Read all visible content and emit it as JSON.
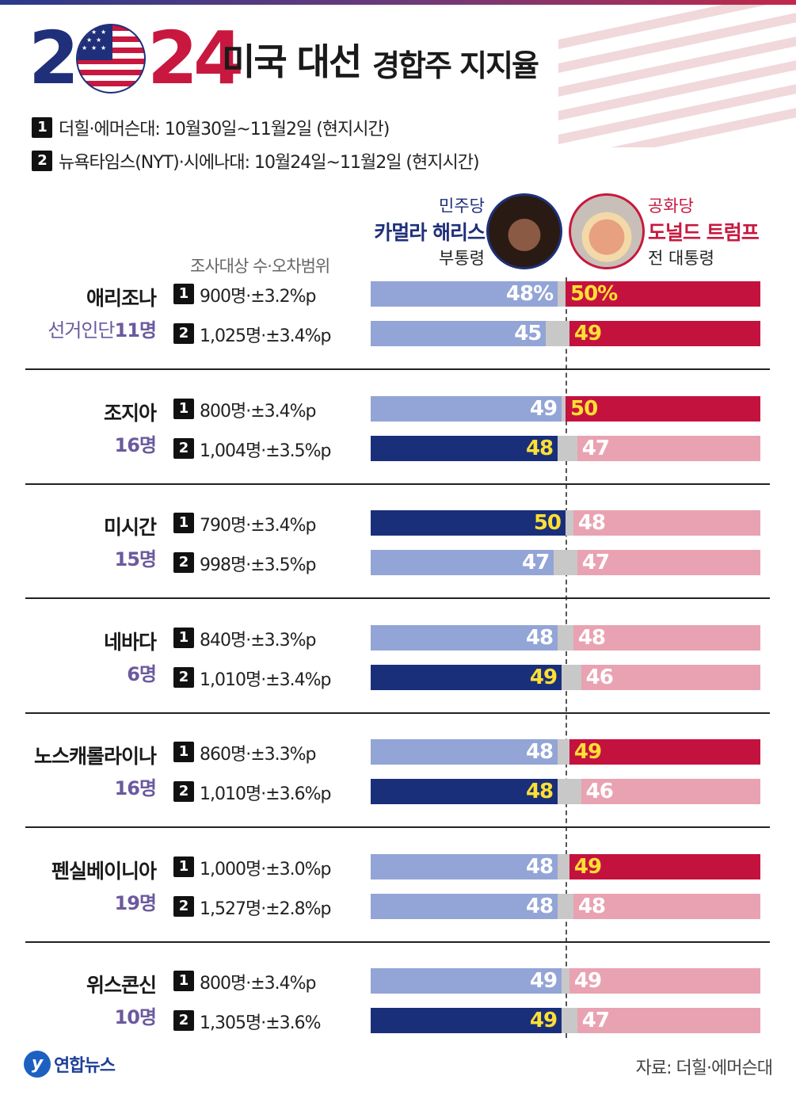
{
  "header": {
    "year_a": "2",
    "year_b": "24",
    "title_main": "미국 대선",
    "title_sub": "경합주 지지율"
  },
  "sources": [
    {
      "badge": "1",
      "text": "더힐·에머슨대: 10월30일~11월2일 (현지시간)"
    },
    {
      "badge": "2",
      "text": "뉴욕타임스(NYT)·시에나대: 10월24일~11월2일 (현지시간)"
    }
  ],
  "candidates": {
    "dem": {
      "party": "민주당",
      "name": "카멀라 해리스",
      "role": "부통령",
      "color": "#1f2f7a"
    },
    "rep": {
      "party": "공화당",
      "name": "도널드 트럼프",
      "role": "전 대통령",
      "color": "#c8183f"
    }
  },
  "column_header": "조사대상 수·오차범위",
  "chart_data": {
    "type": "bar",
    "scale_max": 50,
    "states": [
      {
        "name": "애리조나",
        "votes_label": "선거인단",
        "votes": "11명",
        "polls": [
          {
            "badge": "1",
            "info": "900명·±3.2%p",
            "dem": 48,
            "rep": 50,
            "dem_label": "48%",
            "rep_label": "50%",
            "leader": "rep"
          },
          {
            "badge": "2",
            "info": "1,025명·±3.4%p",
            "dem": 45,
            "rep": 49,
            "dem_label": "45",
            "rep_label": "49",
            "leader": "rep"
          }
        ]
      },
      {
        "name": "조지아",
        "votes_label": "",
        "votes": "16명",
        "polls": [
          {
            "badge": "1",
            "info": "800명·±3.4%p",
            "dem": 49,
            "rep": 50,
            "dem_label": "49",
            "rep_label": "50",
            "leader": "rep"
          },
          {
            "badge": "2",
            "info": "1,004명·±3.5%p",
            "dem": 48,
            "rep": 47,
            "dem_label": "48",
            "rep_label": "47",
            "leader": "dem"
          }
        ]
      },
      {
        "name": "미시간",
        "votes_label": "",
        "votes": "15명",
        "polls": [
          {
            "badge": "1",
            "info": "790명·±3.4%p",
            "dem": 50,
            "rep": 48,
            "dem_label": "50",
            "rep_label": "48",
            "leader": "dem"
          },
          {
            "badge": "2",
            "info": "998명·±3.5%p",
            "dem": 47,
            "rep": 47,
            "dem_label": "47",
            "rep_label": "47",
            "leader": "tie"
          }
        ]
      },
      {
        "name": "네바다",
        "votes_label": "",
        "votes": "6명",
        "polls": [
          {
            "badge": "1",
            "info": "840명·±3.3%p",
            "dem": 48,
            "rep": 48,
            "dem_label": "48",
            "rep_label": "48",
            "leader": "tie"
          },
          {
            "badge": "2",
            "info": "1,010명·±3.4%p",
            "dem": 49,
            "rep": 46,
            "dem_label": "49",
            "rep_label": "46",
            "leader": "dem"
          }
        ]
      },
      {
        "name": "노스캐롤라이나",
        "votes_label": "",
        "votes": "16명",
        "polls": [
          {
            "badge": "1",
            "info": "860명·±3.3%p",
            "dem": 48,
            "rep": 49,
            "dem_label": "48",
            "rep_label": "49",
            "leader": "rep"
          },
          {
            "badge": "2",
            "info": "1,010명·±3.6%p",
            "dem": 48,
            "rep": 46,
            "dem_label": "48",
            "rep_label": "46",
            "leader": "dem"
          }
        ]
      },
      {
        "name": "펜실베이니아",
        "votes_label": "",
        "votes": "19명",
        "polls": [
          {
            "badge": "1",
            "info": "1,000명·±3.0%p",
            "dem": 48,
            "rep": 49,
            "dem_label": "48",
            "rep_label": "49",
            "leader": "rep"
          },
          {
            "badge": "2",
            "info": "1,527명·±2.8%p",
            "dem": 48,
            "rep": 48,
            "dem_label": "48",
            "rep_label": "48",
            "leader": "tie"
          }
        ]
      },
      {
        "name": "위스콘신",
        "votes_label": "",
        "votes": "10명",
        "polls": [
          {
            "badge": "1",
            "info": "800명·±3.4%p",
            "dem": 49,
            "rep": 49,
            "dem_label": "49",
            "rep_label": "49",
            "leader": "tie"
          },
          {
            "badge": "2",
            "info": "1,305명·±3.6%",
            "dem": 49,
            "rep": 47,
            "dem_label": "49",
            "rep_label": "47",
            "leader": "dem"
          }
        ]
      }
    ]
  },
  "footer": {
    "agency": "연합뉴스",
    "source": "자료: 더힐·에머슨대"
  }
}
